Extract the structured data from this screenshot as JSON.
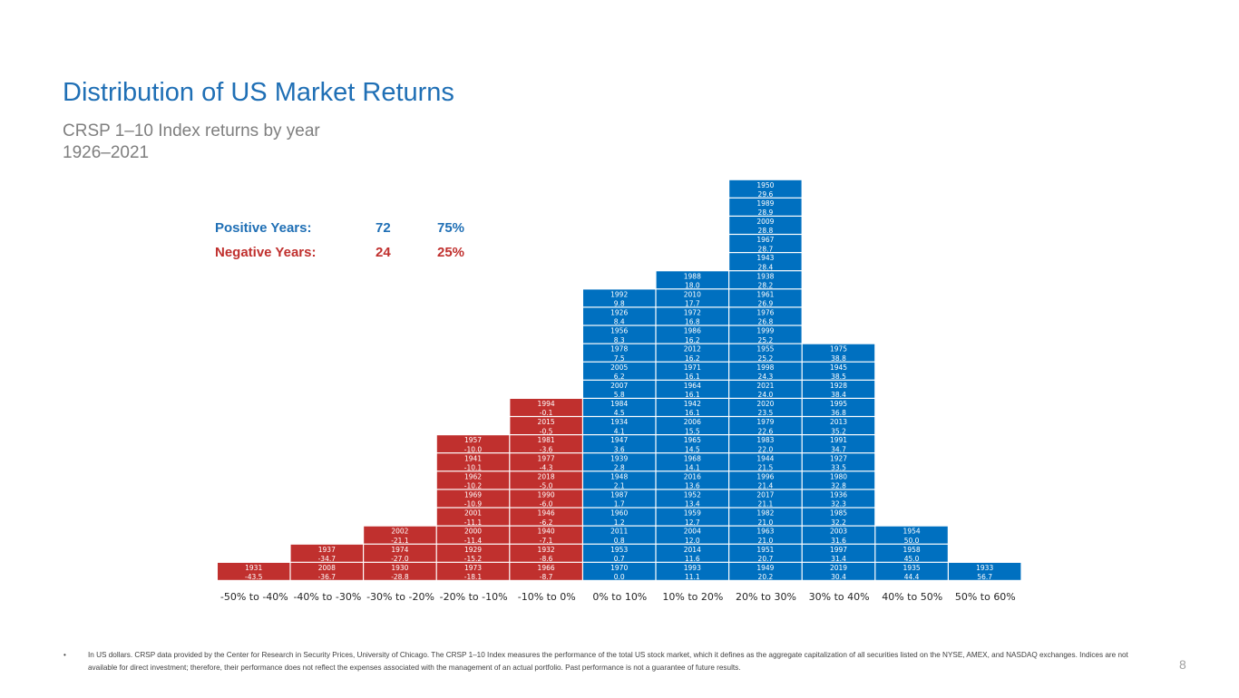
{
  "title": "Distribution of US Market Returns",
  "subtitle": "CRSP 1–10 Index returns by year",
  "period": "1926–2021",
  "stats": {
    "positive": {
      "label": "Positive Years:",
      "count": "72",
      "pct": "75%"
    },
    "negative": {
      "label": "Negative Years:",
      "count": "24",
      "pct": "25%"
    }
  },
  "colors": {
    "positive": "#0070C0",
    "negative": "#C0302E",
    "title": "#1F6FB5"
  },
  "chart_data": {
    "type": "bar",
    "title": "",
    "xlabel": "",
    "ylabel": "",
    "categories": [
      "-50% to -40%",
      "-40% to -30%",
      "-30% to -20%",
      "-20% to -10%",
      "-10% to 0%",
      "0% to 10%",
      "10% to 20%",
      "20% to 30%",
      "30% to 40%",
      "40% to 50%",
      "50% to 60%"
    ],
    "bins": [
      [
        {
          "year": "1931",
          "ret": "-43.5"
        }
      ],
      [
        {
          "year": "2008",
          "ret": "-36.7"
        },
        {
          "year": "1937",
          "ret": "-34.7"
        }
      ],
      [
        {
          "year": "1930",
          "ret": "-28.8"
        },
        {
          "year": "1974",
          "ret": "-27.0"
        },
        {
          "year": "2002",
          "ret": "-21.1"
        }
      ],
      [
        {
          "year": "1973",
          "ret": "-18.1"
        },
        {
          "year": "1929",
          "ret": "-15.2"
        },
        {
          "year": "2000",
          "ret": "-11.4"
        },
        {
          "year": "2001",
          "ret": "-11.1"
        },
        {
          "year": "1969",
          "ret": "-10.9"
        },
        {
          "year": "1962",
          "ret": "-10.2"
        },
        {
          "year": "1941",
          "ret": "-10.1"
        },
        {
          "year": "1957",
          "ret": "-10.0"
        }
      ],
      [
        {
          "year": "1966",
          "ret": "-8.7"
        },
        {
          "year": "1932",
          "ret": "-8.6"
        },
        {
          "year": "1940",
          "ret": "-7.1"
        },
        {
          "year": "1946",
          "ret": "-6.2"
        },
        {
          "year": "1990",
          "ret": "-6.0"
        },
        {
          "year": "2018",
          "ret": "-5.0"
        },
        {
          "year": "1977",
          "ret": "-4.3"
        },
        {
          "year": "1981",
          "ret": "-3.6"
        },
        {
          "year": "2015",
          "ret": "-0.5"
        },
        {
          "year": "1994",
          "ret": "-0.1"
        }
      ],
      [
        {
          "year": "1970",
          "ret": "0.0"
        },
        {
          "year": "1953",
          "ret": "0.7"
        },
        {
          "year": "2011",
          "ret": "0.8"
        },
        {
          "year": "1960",
          "ret": "1.2"
        },
        {
          "year": "1987",
          "ret": "1.7"
        },
        {
          "year": "1948",
          "ret": "2.1"
        },
        {
          "year": "1939",
          "ret": "2.8"
        },
        {
          "year": "1947",
          "ret": "3.6"
        },
        {
          "year": "1934",
          "ret": "4.1"
        },
        {
          "year": "1984",
          "ret": "4.5"
        },
        {
          "year": "2007",
          "ret": "5.8"
        },
        {
          "year": "2005",
          "ret": "6.2"
        },
        {
          "year": "1978",
          "ret": "7.5"
        },
        {
          "year": "1956",
          "ret": "8.3"
        },
        {
          "year": "1926",
          "ret": "8.4"
        },
        {
          "year": "1992",
          "ret": "9.8"
        }
      ],
      [
        {
          "year": "1993",
          "ret": "11.1"
        },
        {
          "year": "2014",
          "ret": "11.6"
        },
        {
          "year": "2004",
          "ret": "12.0"
        },
        {
          "year": "1959",
          "ret": "12.7"
        },
        {
          "year": "1952",
          "ret": "13.4"
        },
        {
          "year": "2016",
          "ret": "13.6"
        },
        {
          "year": "1968",
          "ret": "14.1"
        },
        {
          "year": "1965",
          "ret": "14.5"
        },
        {
          "year": "2006",
          "ret": "15.5"
        },
        {
          "year": "1942",
          "ret": "16.1"
        },
        {
          "year": "1964",
          "ret": "16.1"
        },
        {
          "year": "1971",
          "ret": "16.1"
        },
        {
          "year": "2012",
          "ret": "16.2"
        },
        {
          "year": "1986",
          "ret": "16.2"
        },
        {
          "year": "1972",
          "ret": "16.8"
        },
        {
          "year": "2010",
          "ret": "17.7"
        },
        {
          "year": "1988",
          "ret": "18.0"
        }
      ],
      [
        {
          "year": "1949",
          "ret": "20.2"
        },
        {
          "year": "1951",
          "ret": "20.7"
        },
        {
          "year": "1963",
          "ret": "21.0"
        },
        {
          "year": "1982",
          "ret": "21.0"
        },
        {
          "year": "2017",
          "ret": "21.1"
        },
        {
          "year": "1996",
          "ret": "21.4"
        },
        {
          "year": "1944",
          "ret": "21.5"
        },
        {
          "year": "1983",
          "ret": "22.0"
        },
        {
          "year": "1979",
          "ret": "22.6"
        },
        {
          "year": "2020",
          "ret": "23.5"
        },
        {
          "year": "2021",
          "ret": "24.0"
        },
        {
          "year": "1998",
          "ret": "24.3"
        },
        {
          "year": "1955",
          "ret": "25.2"
        },
        {
          "year": "1999",
          "ret": "25.2"
        },
        {
          "year": "1976",
          "ret": "26.8"
        },
        {
          "year": "1961",
          "ret": "26.9"
        },
        {
          "year": "1938",
          "ret": "28.2"
        },
        {
          "year": "1943",
          "ret": "28.4"
        },
        {
          "year": "1967",
          "ret": "28.7"
        },
        {
          "year": "2009",
          "ret": "28.8"
        },
        {
          "year": "1989",
          "ret": "28.9"
        },
        {
          "year": "1950",
          "ret": "29.6"
        }
      ],
      [
        {
          "year": "2019",
          "ret": "30.4"
        },
        {
          "year": "1997",
          "ret": "31.4"
        },
        {
          "year": "2003",
          "ret": "31.6"
        },
        {
          "year": "1985",
          "ret": "32.2"
        },
        {
          "year": "1936",
          "ret": "32.3"
        },
        {
          "year": "1980",
          "ret": "32.8"
        },
        {
          "year": "1927",
          "ret": "33.5"
        },
        {
          "year": "1991",
          "ret": "34.7"
        },
        {
          "year": "2013",
          "ret": "35.2"
        },
        {
          "year": "1995",
          "ret": "36.8"
        },
        {
          "year": "1928",
          "ret": "38.4"
        },
        {
          "year": "1945",
          "ret": "38.5"
        },
        {
          "year": "1975",
          "ret": "38.8"
        }
      ],
      [
        {
          "year": "1935",
          "ret": "44.4"
        },
        {
          "year": "1958",
          "ret": "45.0"
        },
        {
          "year": "1954",
          "ret": "50.0"
        }
      ],
      [
        {
          "year": "1933",
          "ret": "56.7"
        }
      ]
    ]
  },
  "footnote": "In US dollars. CRSP data provided by the Center for Research in Security Prices, University of Chicago. The CRSP 1–10 Index measures the performance of the total US stock market, which it defines as the aggregate capitalization of all securities listed on the NYSE, AMEX, and NASDAQ exchanges. Indices are not available for direct investment; therefore, their performance does not reflect the expenses associated with the management of an actual portfolio. Past performance is not a guarantee of future results.",
  "bullet": "•",
  "page_number": "8"
}
